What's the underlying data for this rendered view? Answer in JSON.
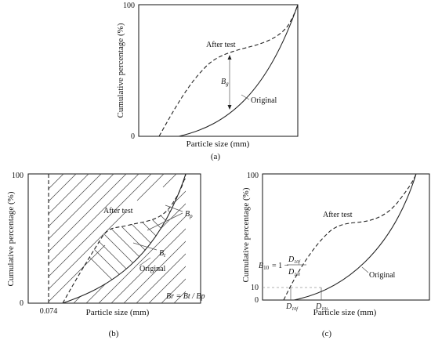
{
  "panel_a": {
    "ylabel": "Cumulative percentage (%)",
    "xlabel": "Particle size (mm)",
    "y_top": "100",
    "y_zero": "0",
    "after_label": "After test",
    "original_label": "Original",
    "bg_main": "B",
    "bg_sub": "g",
    "caption": "(a)"
  },
  "panel_b": {
    "ylabel": "Cumulative percentage (%)",
    "xlabel": "Particle size (mm)",
    "y_top": "100",
    "y_zero": "0",
    "x_tick": "0.074",
    "after_label": "After test",
    "original_label": "Original",
    "bp_main": "B",
    "bp_sub": "p",
    "bt_main": "B",
    "bt_sub": "t",
    "formula": "Br = Bt / Bp",
    "caption": "(b)"
  },
  "panel_c": {
    "ylabel": "Cumulative percentage (%)",
    "xlabel": "Particle size (mm)",
    "y_top": "100",
    "y_ten": "10",
    "y_zero": "0",
    "after_label": "After test",
    "original_label": "Original",
    "formula_lhs": "B",
    "formula_lhs_sub": "10",
    "formula_eq": "= 1 −",
    "num_main": "D",
    "num_sub": "10f",
    "den_main": "D",
    "den_sub": "10i",
    "d10f_main": "D",
    "d10f_sub": "10f",
    "d10i_main": "D",
    "d10i_sub": "10i",
    "caption": "(c)"
  }
}
